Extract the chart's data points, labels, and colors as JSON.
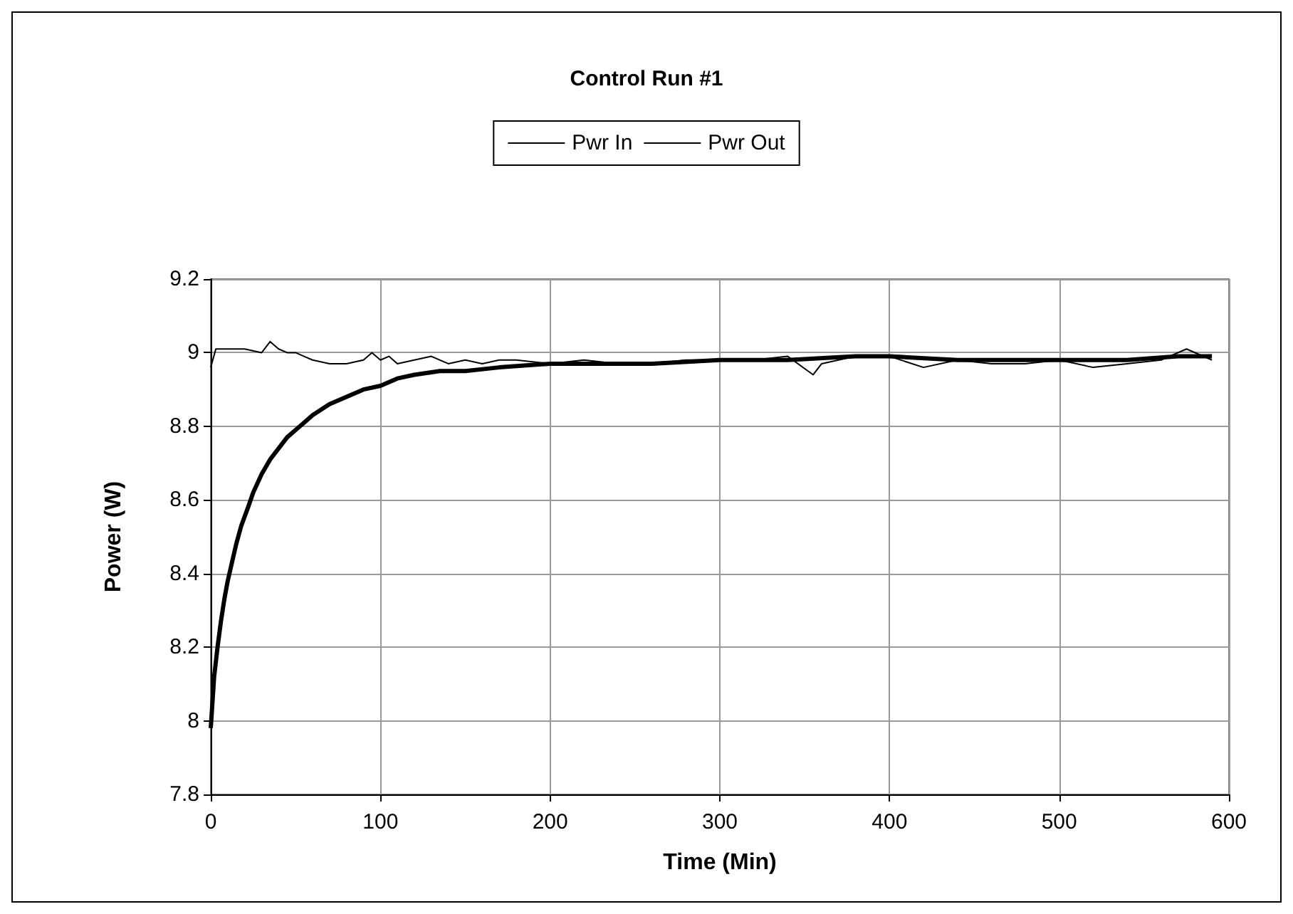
{
  "chart_data": {
    "type": "line",
    "title": "Control Run #1",
    "xlabel": "Time (Min)",
    "ylabel": "Power (W)",
    "xlim": [
      0,
      600
    ],
    "xticks": [
      0,
      100,
      200,
      300,
      400,
      500,
      600
    ],
    "ylim": [
      7.8,
      9.2
    ],
    "yticks": [
      7.8,
      8,
      8.2,
      8.4,
      8.6,
      8.8,
      9,
      9.2
    ],
    "grid": true,
    "legend": "top",
    "marker": "none",
    "line_style": "solid",
    "series": [
      {
        "name": "Pwr In",
        "color": "#000000",
        "x": [
          0,
          3,
          10,
          20,
          30,
          35,
          40,
          45,
          50,
          55,
          60,
          70,
          80,
          90,
          95,
          100,
          105,
          110,
          120,
          130,
          140,
          150,
          160,
          170,
          180,
          200,
          220,
          240,
          260,
          280,
          300,
          320,
          340,
          355,
          360,
          380,
          400,
          420,
          440,
          460,
          480,
          500,
          520,
          540,
          560,
          575,
          590
        ],
        "values": [
          8.96,
          9.01,
          9.01,
          9.01,
          9.0,
          9.03,
          9.01,
          9.0,
          9.0,
          8.99,
          8.98,
          8.97,
          8.97,
          8.98,
          9.0,
          8.98,
          8.99,
          8.97,
          8.98,
          8.99,
          8.97,
          8.98,
          8.97,
          8.98,
          8.98,
          8.97,
          8.98,
          8.97,
          8.97,
          8.98,
          8.98,
          8.98,
          8.99,
          8.94,
          8.97,
          8.99,
          8.99,
          8.96,
          8.98,
          8.97,
          8.97,
          8.98,
          8.96,
          8.97,
          8.98,
          9.01,
          8.98
        ]
      },
      {
        "name": "Pwr Out",
        "color": "#000000",
        "x": [
          0,
          1,
          2,
          4,
          6,
          8,
          10,
          12,
          15,
          18,
          22,
          25,
          30,
          35,
          40,
          45,
          50,
          55,
          60,
          70,
          80,
          90,
          100,
          110,
          120,
          135,
          150,
          170,
          200,
          230,
          260,
          300,
          340,
          380,
          400,
          440,
          480,
          500,
          540,
          570,
          590
        ],
        "values": [
          7.98,
          8.05,
          8.12,
          8.2,
          8.27,
          8.33,
          8.38,
          8.42,
          8.48,
          8.53,
          8.58,
          8.62,
          8.67,
          8.71,
          8.74,
          8.77,
          8.79,
          8.81,
          8.83,
          8.86,
          8.88,
          8.9,
          8.91,
          8.93,
          8.94,
          8.95,
          8.95,
          8.96,
          8.97,
          8.97,
          8.97,
          8.98,
          8.98,
          8.99,
          8.99,
          8.98,
          8.98,
          8.98,
          8.98,
          8.99,
          8.99
        ]
      }
    ]
  }
}
